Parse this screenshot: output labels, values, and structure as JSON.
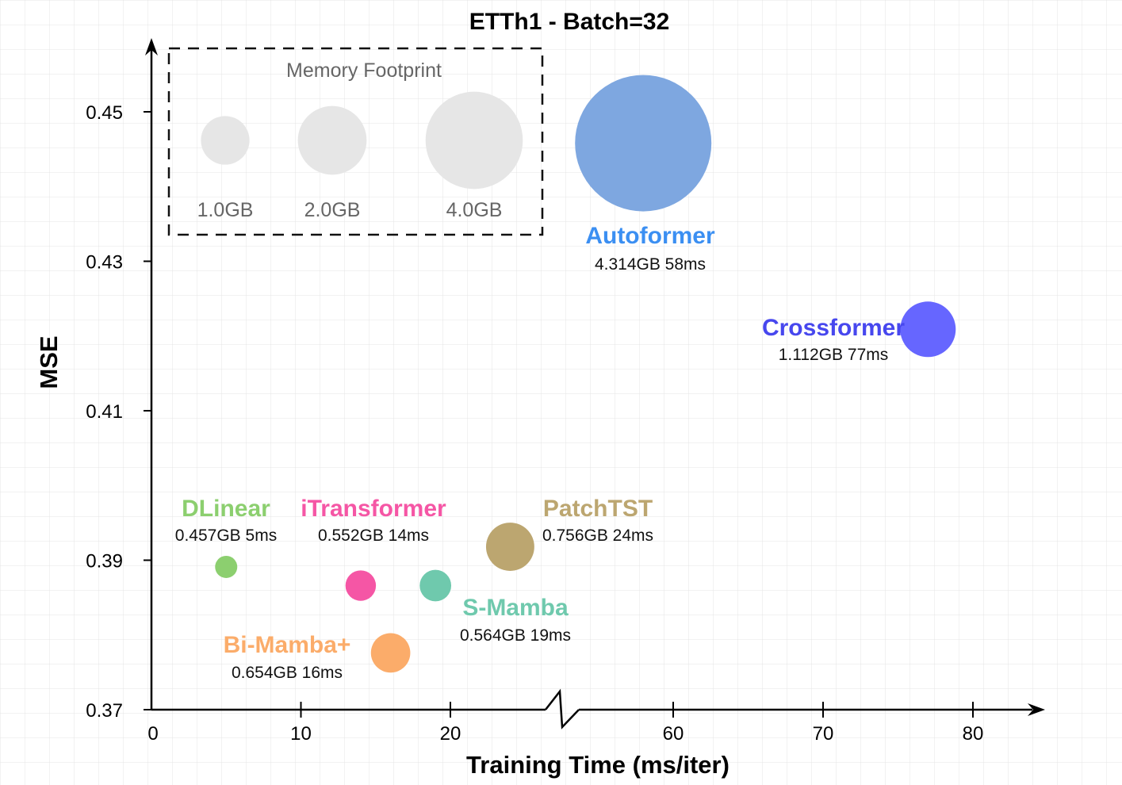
{
  "chart_data": {
    "type": "scatter",
    "title": "ETTh1 - Batch=32",
    "xlabel": "Training Time (ms/iter)",
    "ylabel": "MSE",
    "x_ticks": [
      "0",
      "10",
      "20",
      "60",
      "70",
      "80"
    ],
    "y_ticks": [
      "0.37",
      "0.39",
      "0.41",
      "0.43",
      "0.45"
    ],
    "ylim": [
      0.37,
      0.458
    ],
    "x_axis_break": [
      27,
      55
    ],
    "grid": true,
    "legend": {
      "title": "Memory Footprint",
      "items": [
        {
          "label": "1.0GB",
          "memory_gb": 1.0
        },
        {
          "label": "2.0GB",
          "memory_gb": 2.0
        },
        {
          "label": "4.0GB",
          "memory_gb": 4.0
        }
      ]
    },
    "points": [
      {
        "name": "DLinear",
        "detail": "0.457GB 5ms",
        "time_ms": 5,
        "mse": 0.3891,
        "memory_gb": 0.457,
        "color": "#8ccf6f"
      },
      {
        "name": "iTransformer",
        "detail": "0.552GB 14ms",
        "time_ms": 14,
        "mse": 0.3866,
        "memory_gb": 0.552,
        "color": "#f556a5"
      },
      {
        "name": "Bi-Mamba+",
        "detail": "0.654GB 16ms",
        "time_ms": 16,
        "mse": 0.3776,
        "memory_gb": 0.654,
        "color": "#fbac6a"
      },
      {
        "name": "S-Mamba",
        "detail": "0.564GB 19ms",
        "time_ms": 19,
        "mse": 0.3866,
        "memory_gb": 0.564,
        "color": "#6fc9ad"
      },
      {
        "name": "PatchTST",
        "detail": "0.756GB 24ms",
        "time_ms": 24,
        "mse": 0.3918,
        "memory_gb": 0.756,
        "color": "#bca670"
      },
      {
        "name": "Autoformer",
        "detail": "4.314GB 58ms",
        "time_ms": 58,
        "mse": 0.4458,
        "memory_gb": 4.314,
        "color": "#7ea7e0",
        "name_color": "#3b8ff2"
      },
      {
        "name": "Crossformer",
        "detail": "1.112GB 77ms",
        "time_ms": 77,
        "mse": 0.4209,
        "memory_gb": 1.112,
        "color": "#6666ff",
        "name_color": "#4747ee"
      }
    ]
  }
}
